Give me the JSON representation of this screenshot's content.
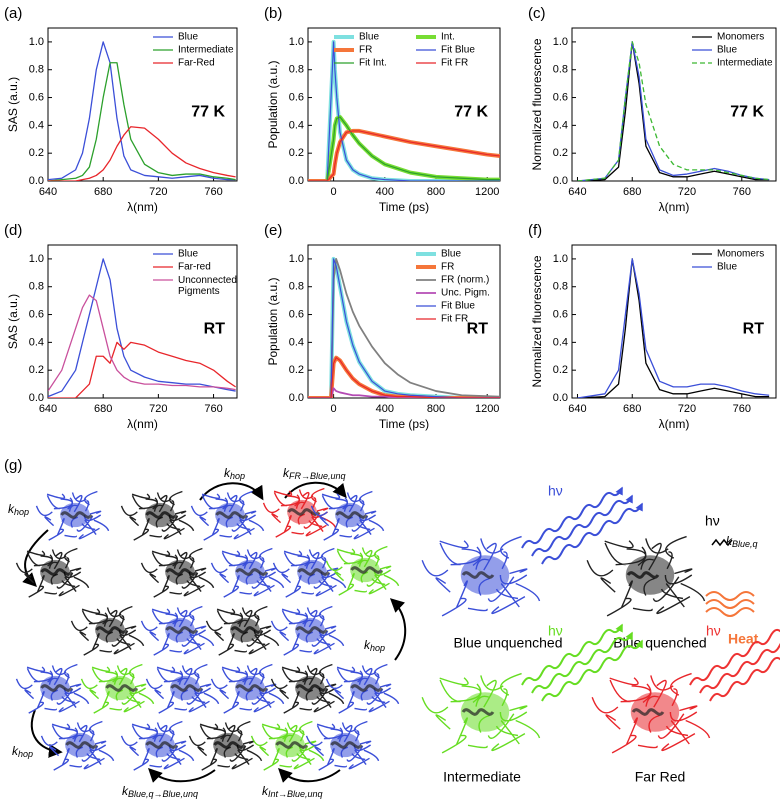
{
  "chart_data": [
    {
      "type": "line",
      "label": "(a)",
      "annotation": "77 K",
      "xlabel": "λ(nm)",
      "ylabel": "SAS (a.u.)",
      "xlim": [
        640,
        777
      ],
      "ylim": [
        0,
        1.1
      ],
      "xticks": [
        640,
        680,
        720,
        760
      ],
      "yticks": [
        {
          "value": 0,
          "label": "0.0"
        },
        {
          "value": 0.2,
          "label": "0.2"
        },
        {
          "value": 0.4,
          "label": "0.4"
        },
        {
          "value": 0.6,
          "label": "0.6"
        },
        {
          "value": 0.8,
          "label": "0.8"
        },
        {
          "value": 1,
          "label": "1.0"
        }
      ],
      "legend": "upper right",
      "legend_columns": 1,
      "x": [
        640,
        650,
        660,
        665,
        670,
        675,
        680,
        685,
        690,
        695,
        700,
        710,
        720,
        730,
        740,
        750,
        760,
        770,
        776
      ],
      "series": [
        {
          "name": "Blue",
          "color": "#3b4fd8",
          "linewidth": 1.3,
          "values": [
            0.01,
            0.02,
            0.08,
            0.2,
            0.45,
            0.8,
            1.0,
            0.85,
            0.45,
            0.18,
            0.08,
            0.04,
            0.03,
            0.02,
            0.03,
            0.04,
            0.02,
            0.01,
            0.01
          ]
        },
        {
          "name": "Intermediate",
          "color": "#2ca02c",
          "linewidth": 1.3,
          "values": [
            0,
            0.01,
            0.02,
            0.04,
            0.1,
            0.3,
            0.6,
            0.85,
            0.85,
            0.55,
            0.3,
            0.12,
            0.06,
            0.04,
            0.05,
            0.05,
            0.03,
            0.02,
            0.01
          ]
        },
        {
          "name": "Far-Red",
          "color": "#e8262b",
          "linewidth": 1.3,
          "values": [
            0,
            0,
            0,
            0.01,
            0.02,
            0.04,
            0.08,
            0.15,
            0.25,
            0.33,
            0.39,
            0.38,
            0.3,
            0.2,
            0.13,
            0.09,
            0.06,
            0.04,
            0.03
          ]
        }
      ]
    },
    {
      "type": "line",
      "label": "(b)",
      "annotation": "77 K",
      "xlabel": "Time (ps)",
      "ylabel": "Population (a.u.)",
      "xlim": [
        -200,
        1300
      ],
      "ylim": [
        0,
        1.1
      ],
      "xticks": [
        0,
        400,
        800,
        1200
      ],
      "yticks": [
        {
          "value": 0,
          "label": "0.0"
        },
        {
          "value": 0.2,
          "label": "0.2"
        },
        {
          "value": 0.4,
          "label": "0.4"
        },
        {
          "value": 0.6,
          "label": "0.6"
        },
        {
          "value": 0.8,
          "label": "0.8"
        },
        {
          "value": 1,
          "label": "1.0"
        }
      ],
      "legend": "upper right",
      "legend_columns": 2,
      "x": [
        -200,
        -50,
        0,
        10,
        25,
        50,
        100,
        150,
        200,
        300,
        400,
        600,
        800,
        1000,
        1200,
        1300
      ],
      "series": [
        {
          "name": "Blue",
          "color": "#7ee0e0",
          "linewidth": 4,
          "values": [
            0,
            0,
            1.0,
            0.8,
            0.6,
            0.35,
            0.15,
            0.08,
            0.05,
            0.02,
            0.01,
            0,
            0,
            0,
            0,
            0
          ]
        },
        {
          "name": "Int.",
          "color": "#77dd33",
          "linewidth": 4,
          "values": [
            0,
            0,
            0.3,
            0.4,
            0.45,
            0.46,
            0.4,
            0.33,
            0.27,
            0.18,
            0.12,
            0.06,
            0.03,
            0.02,
            0.01,
            0.01
          ]
        },
        {
          "name": "FR",
          "color": "#f5763a",
          "linewidth": 4,
          "values": [
            0,
            0,
            0.05,
            0.12,
            0.2,
            0.28,
            0.35,
            0.36,
            0.36,
            0.34,
            0.32,
            0.28,
            0.25,
            0.22,
            0.19,
            0.18
          ]
        },
        {
          "name": "Fit Blue",
          "color": "#3b4fd8",
          "linewidth": 1.2,
          "values": [
            0,
            0,
            1.0,
            0.8,
            0.6,
            0.35,
            0.15,
            0.08,
            0.05,
            0.02,
            0.01,
            0,
            0,
            0,
            0,
            0
          ]
        },
        {
          "name": "Fit Int.",
          "color": "#2ca02c",
          "linewidth": 1.2,
          "values": [
            0,
            0,
            0.3,
            0.4,
            0.45,
            0.46,
            0.4,
            0.33,
            0.27,
            0.18,
            0.12,
            0.06,
            0.03,
            0.02,
            0.01,
            0.01
          ]
        },
        {
          "name": "Fit FR",
          "color": "#e8262b",
          "linewidth": 1.2,
          "values": [
            0,
            0,
            0.05,
            0.12,
            0.2,
            0.28,
            0.35,
            0.36,
            0.36,
            0.34,
            0.32,
            0.28,
            0.25,
            0.22,
            0.19,
            0.18
          ]
        }
      ]
    },
    {
      "type": "line",
      "label": "(c)",
      "annotation": "77 K",
      "xlabel": "λ(nm)",
      "ylabel": "Normalized fluorescence",
      "xlim": [
        636,
        785
      ],
      "ylim": [
        0,
        1.1
      ],
      "xticks": [
        640,
        680,
        720,
        760
      ],
      "yticks": [
        {
          "value": 0,
          "label": "0.0"
        },
        {
          "value": 0.2,
          "label": "0.2"
        },
        {
          "value": 0.4,
          "label": "0.4"
        },
        {
          "value": 0.6,
          "label": "0.6"
        },
        {
          "value": 0.8,
          "label": "0.8"
        },
        {
          "value": 1,
          "label": "1.0"
        }
      ],
      "legend": "upper right",
      "legend_columns": 1,
      "x": [
        640,
        660,
        670,
        675,
        680,
        685,
        690,
        700,
        710,
        720,
        730,
        740,
        750,
        760,
        770,
        780
      ],
      "series": [
        {
          "name": "Monomers",
          "color": "#000000",
          "linewidth": 1.3,
          "values": [
            0,
            0.01,
            0.1,
            0.5,
            1.0,
            0.7,
            0.25,
            0.06,
            0.03,
            0.03,
            0.05,
            0.07,
            0.05,
            0.03,
            0.01,
            0.01
          ]
        },
        {
          "name": "Blue",
          "color": "#3b4fd8",
          "linewidth": 1.3,
          "values": [
            0,
            0.02,
            0.15,
            0.6,
            1.0,
            0.75,
            0.3,
            0.08,
            0.04,
            0.05,
            0.07,
            0.09,
            0.07,
            0.04,
            0.02,
            0.01
          ]
        },
        {
          "name": "Intermediate",
          "color": "#3cb832",
          "linewidth": 1.3,
          "dash": true,
          "values": [
            0,
            0.02,
            0.15,
            0.6,
            1.0,
            0.85,
            0.55,
            0.25,
            0.12,
            0.08,
            0.08,
            0.08,
            0.06,
            0.04,
            0.02,
            0.01
          ]
        }
      ]
    },
    {
      "type": "line",
      "label": "(d)",
      "annotation": "RT",
      "xlabel": "λ(nm)",
      "ylabel": "SAS (a.u.)",
      "xlim": [
        640,
        777
      ],
      "ylim": [
        0,
        1.1
      ],
      "xticks": [
        640,
        680,
        720,
        760
      ],
      "yticks": [
        {
          "value": 0,
          "label": "0.0"
        },
        {
          "value": 0.2,
          "label": "0.2"
        },
        {
          "value": 0.4,
          "label": "0.4"
        },
        {
          "value": 0.6,
          "label": "0.6"
        },
        {
          "value": 0.8,
          "label": "0.8"
        },
        {
          "value": 1,
          "label": "1.0"
        }
      ],
      "legend": "upper right",
      "legend_columns": 1,
      "x": [
        640,
        650,
        660,
        665,
        670,
        675,
        680,
        685,
        690,
        695,
        700,
        710,
        720,
        730,
        740,
        750,
        760,
        770,
        776
      ],
      "series": [
        {
          "name": "Blue",
          "color": "#3b4fd8",
          "linewidth": 1.3,
          "values": [
            0.01,
            0.05,
            0.2,
            0.4,
            0.6,
            0.8,
            1.0,
            0.85,
            0.5,
            0.3,
            0.2,
            0.15,
            0.12,
            0.11,
            0.1,
            0.1,
            0.08,
            0.06,
            0.05
          ]
        },
        {
          "name": "Far-red",
          "color": "#e8262b",
          "linewidth": 1.3,
          "values": [
            0,
            0,
            0,
            0.05,
            0.1,
            0.3,
            0.3,
            0.25,
            0.4,
            0.35,
            0.4,
            0.38,
            0.33,
            0.3,
            0.27,
            0.25,
            0.2,
            0.12,
            0.08
          ]
        },
        {
          "name": "Unconnected Pigments",
          "color": "#c9509c",
          "linewidth": 1.3,
          "values": [
            0.05,
            0.2,
            0.5,
            0.65,
            0.74,
            0.7,
            0.5,
            0.3,
            0.2,
            0.15,
            0.12,
            0.1,
            0.1,
            0.09,
            0.09,
            0.08,
            0.08,
            0.07,
            0.06
          ]
        }
      ]
    },
    {
      "type": "line",
      "label": "(e)",
      "annotation": "RT",
      "xlabel": "Time (ps)",
      "ylabel": "Population (a.u.)",
      "xlim": [
        -200,
        1300
      ],
      "ylim": [
        0,
        1.1
      ],
      "xticks": [
        0,
        400,
        800,
        1200
      ],
      "yticks": [
        {
          "value": 0,
          "label": "0.0"
        },
        {
          "value": 0.2,
          "label": "0.2"
        },
        {
          "value": 0.4,
          "label": "0.4"
        },
        {
          "value": 0.6,
          "label": "0.6"
        },
        {
          "value": 0.8,
          "label": "0.8"
        },
        {
          "value": 1,
          "label": "1.0"
        }
      ],
      "legend": "upper right",
      "legend_columns": 1,
      "x": [
        -200,
        -20,
        0,
        20,
        50,
        100,
        150,
        200,
        300,
        400,
        500,
        600,
        800,
        1000,
        1300
      ],
      "series": [
        {
          "name": "Blue",
          "color": "#7ee0e0",
          "linewidth": 4,
          "values": [
            0,
            0,
            1.0,
            0.95,
            0.8,
            0.55,
            0.38,
            0.26,
            0.12,
            0.05,
            0.03,
            0.02,
            0.01,
            0,
            0
          ]
        },
        {
          "name": "FR",
          "color": "#f5763a",
          "linewidth": 4,
          "values": [
            0,
            0,
            0.25,
            0.29,
            0.27,
            0.2,
            0.14,
            0.1,
            0.05,
            0.02,
            0.01,
            0.01,
            0,
            0,
            0
          ]
        },
        {
          "name": "FR (norm.)",
          "color": "#808080",
          "linewidth": 1.8,
          "values": [
            0,
            0,
            0.85,
            1.0,
            0.92,
            0.75,
            0.62,
            0.52,
            0.37,
            0.25,
            0.17,
            0.11,
            0.05,
            0.02,
            0.01
          ]
        },
        {
          "name": "Unc. Pigm.",
          "color": "#b44bb4",
          "linewidth": 1.8,
          "values": [
            0,
            0,
            0.07,
            0.05,
            0.04,
            0.03,
            0.02,
            0.02,
            0.01,
            0.01,
            0,
            0,
            0,
            0,
            0
          ]
        },
        {
          "name": "Fit Blue",
          "color": "#3b4fd8",
          "linewidth": 1.2,
          "values": [
            0,
            0,
            1.0,
            0.95,
            0.8,
            0.55,
            0.38,
            0.26,
            0.12,
            0.05,
            0.03,
            0.02,
            0.01,
            0,
            0
          ]
        },
        {
          "name": "Fit FR",
          "color": "#e8262b",
          "linewidth": 1.2,
          "values": [
            0,
            0,
            0.25,
            0.29,
            0.27,
            0.2,
            0.14,
            0.1,
            0.05,
            0.02,
            0.01,
            0.01,
            0,
            0,
            0
          ]
        }
      ]
    },
    {
      "type": "line",
      "label": "(f)",
      "annotation": "RT",
      "xlabel": "λ(nm)",
      "ylabel": "Normalized fluorescence",
      "xlim": [
        636,
        785
      ],
      "ylim": [
        0,
        1.1
      ],
      "xticks": [
        640,
        680,
        720,
        760
      ],
      "yticks": [
        {
          "value": 0,
          "label": "0.0"
        },
        {
          "value": 0.2,
          "label": "0.2"
        },
        {
          "value": 0.4,
          "label": "0.4"
        },
        {
          "value": 0.6,
          "label": "0.6"
        },
        {
          "value": 0.8,
          "label": "0.8"
        },
        {
          "value": 1,
          "label": "1.0"
        }
      ],
      "legend": "upper right",
      "legend_columns": 1,
      "x": [
        640,
        660,
        670,
        675,
        680,
        685,
        690,
        700,
        710,
        720,
        730,
        740,
        750,
        760,
        770,
        780
      ],
      "series": [
        {
          "name": "Monomers",
          "color": "#000000",
          "linewidth": 1.3,
          "values": [
            0,
            0.01,
            0.1,
            0.5,
            1.0,
            0.7,
            0.25,
            0.06,
            0.03,
            0.03,
            0.05,
            0.07,
            0.05,
            0.03,
            0.01,
            0.01
          ]
        },
        {
          "name": "Blue",
          "color": "#3b4fd8",
          "linewidth": 1.3,
          "values": [
            0,
            0.03,
            0.2,
            0.6,
            1.0,
            0.75,
            0.35,
            0.12,
            0.08,
            0.08,
            0.1,
            0.1,
            0.08,
            0.05,
            0.03,
            0.02
          ]
        }
      ]
    }
  ],
  "diagram": {
    "label": "(g)",
    "photon": "hν",
    "heat": "Heat",
    "states": [
      "Blue unquenched",
      "Blue quenched",
      "Intermediate",
      "Far Red"
    ],
    "rates": [
      {
        "symbol": "k",
        "subscript": "hop"
      },
      {
        "symbol": "k",
        "subscript": "hop"
      },
      {
        "symbol": "k",
        "subscript": "FR→Blue,unq"
      },
      {
        "symbol": "k",
        "subscript": "hop"
      },
      {
        "symbol": "k",
        "subscript": "hop"
      },
      {
        "symbol": "k",
        "subscript": "Blue,q→Blue,unq"
      },
      {
        "symbol": "k",
        "subscript": "Int→Blue,unq"
      },
      {
        "symbol": "k",
        "subscript": "Blue,q"
      }
    ]
  }
}
